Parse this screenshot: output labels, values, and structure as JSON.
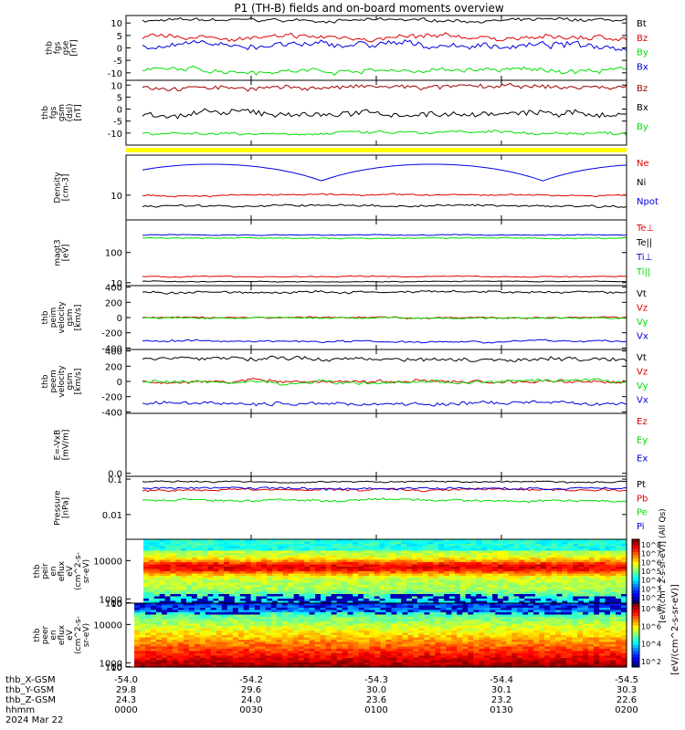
{
  "title": "P1 (TH-B) fields and on-board moments overview",
  "colors": {
    "black": "#000000",
    "red": "#e00000",
    "green": "#00e000",
    "blue": "#0000e0",
    "yellow": "#ffff00",
    "darkred": "#a00000"
  },
  "chart_data": [
    {
      "type": "line",
      "id": "p1",
      "ylabel_lines": [
        "thb",
        "fgs",
        "gse",
        "[nT]"
      ],
      "ylim": [
        -13,
        13
      ],
      "yticks": [
        -10,
        -5,
        0,
        5,
        10
      ],
      "series": [
        {
          "name": "Bt",
          "color": "black",
          "level": 11,
          "noise": 1
        },
        {
          "name": "Bz",
          "color": "red",
          "level": 4,
          "noise": 1.5
        },
        {
          "name": "By",
          "color": "green",
          "level": -9,
          "noise": 1.5
        },
        {
          "name": "Bx",
          "color": "blue",
          "level": 1,
          "noise": 2
        }
      ],
      "legend": [
        "Bt",
        "Bz",
        "By",
        "Bx"
      ]
    },
    {
      "type": "line",
      "id": "p2",
      "ylabel_lines": [
        "thb",
        "fgs",
        "gsm",
        "(dsl)",
        "[nT]"
      ],
      "ylim": [
        -15,
        12
      ],
      "yticks": [
        -10,
        -5,
        0,
        5,
        10
      ],
      "series": [
        {
          "name": "Bz",
          "color": "darkred",
          "level": 9,
          "noise": 1.5
        },
        {
          "name": "Bx",
          "color": "black",
          "level": -2,
          "noise": 2
        },
        {
          "name": "By",
          "color": "green",
          "level": -10,
          "noise": 1
        }
      ],
      "legend": [
        "Bz",
        "Bx",
        "By"
      ]
    },
    {
      "type": "line",
      "id": "p3",
      "ylabel_lines": [
        "Density",
        "[cm-3]"
      ],
      "ylim": [
        3,
        70
      ],
      "yticks": [
        10
      ],
      "log": true,
      "series": [
        {
          "name": "Ne",
          "color": "red",
          "level": 10,
          "noise": 0.6
        },
        {
          "name": "Ni",
          "color": "black",
          "level": 6,
          "noise": 0.5
        },
        {
          "name": "Npot",
          "color": "blue",
          "level": 40,
          "noise": 0
        }
      ],
      "legend": [
        "Ne",
        "Ni",
        "Npot"
      ]
    },
    {
      "type": "line",
      "id": "p4",
      "ylabel_lines": [
        "magt3",
        "[eV]"
      ],
      "ylim": [
        8,
        1200
      ],
      "yticks": [
        10,
        100
      ],
      "log": true,
      "series": [
        {
          "name": "Te⊥",
          "color": "red",
          "level": 16,
          "noise": 1
        },
        {
          "name": "Te||",
          "color": "black",
          "level": 11,
          "noise": 0.5
        },
        {
          "name": "Ti⊥",
          "color": "blue",
          "level": 380,
          "noise": 20
        },
        {
          "name": "Ti||",
          "color": "green",
          "level": 300,
          "noise": 20
        }
      ],
      "legend": [
        "Te⊥",
        "Te||",
        "Ti⊥",
        "Ti||"
      ]
    },
    {
      "type": "line",
      "id": "p5",
      "ylabel_lines": [
        "thb",
        "peim",
        "velocity",
        "gsm",
        "[km/s]"
      ],
      "ylim": [
        -420,
        420
      ],
      "yticks": [
        -400,
        -200,
        0,
        200,
        400
      ],
      "series": [
        {
          "name": "Vt",
          "color": "black",
          "level": 330,
          "noise": 25
        },
        {
          "name": "Vz",
          "color": "red",
          "level": 0,
          "noise": 15
        },
        {
          "name": "Vy",
          "color": "green",
          "level": -5,
          "noise": 15
        },
        {
          "name": "Vx",
          "color": "blue",
          "level": -310,
          "noise": 20
        }
      ],
      "legend": [
        "Vt",
        "Vz",
        "Vy",
        "Vx"
      ]
    },
    {
      "type": "line",
      "id": "p6",
      "ylabel_lines": [
        "thb",
        "peem",
        "velocity",
        "gsm",
        "[km/s]"
      ],
      "ylim": [
        -420,
        420
      ],
      "yticks": [
        -400,
        -200,
        0,
        200,
        400
      ],
      "series": [
        {
          "name": "Vt",
          "color": "black",
          "level": 300,
          "noise": 40
        },
        {
          "name": "Vz",
          "color": "red",
          "level": 0,
          "noise": 35
        },
        {
          "name": "Vy",
          "color": "green",
          "level": -10,
          "noise": 35
        },
        {
          "name": "Vx",
          "color": "blue",
          "level": -290,
          "noise": 35
        }
      ],
      "legend": [
        "Vt",
        "Vz",
        "Vy",
        "Vx"
      ]
    },
    {
      "type": "line",
      "id": "p7",
      "ylabel_lines": [
        "E=-VxB",
        "[mV/m]"
      ],
      "ylim": [
        -0.05,
        1
      ],
      "yticks": [
        0.0
      ],
      "series": [],
      "legend": [
        "Ez",
        "Ey",
        "Ex"
      ],
      "legend_colors": [
        "red",
        "green",
        "blue"
      ]
    },
    {
      "type": "line",
      "id": "p8",
      "ylabel_lines": [
        "Pressure",
        "[nPa]"
      ],
      "ylim": [
        0.002,
        0.12
      ],
      "yticks": [
        0.01,
        0.1
      ],
      "log": true,
      "series": [
        {
          "name": "Pt",
          "color": "black",
          "level": 0.085,
          "noise": 0.006
        },
        {
          "name": "Pb",
          "color": "red",
          "level": 0.05,
          "noise": 0.006
        },
        {
          "name": "Pe",
          "color": "green",
          "level": 0.025,
          "noise": 0.003
        },
        {
          "name": "Pi",
          "color": "blue",
          "level": 0.055,
          "noise": 0.006
        }
      ],
      "legend": [
        "Pt",
        "Pb",
        "Pe",
        "Pi"
      ]
    },
    {
      "type": "heatmap",
      "id": "p9",
      "ylabel_lines": [
        "thb",
        "peir",
        "en",
        "eflux",
        "eV",
        "(cm^2-s-",
        "sr-eV)"
      ],
      "ylim": [
        6,
        15000
      ],
      "yticks": [
        10,
        100,
        1000,
        10000
      ],
      "colorbar_ticks": [
        "10^8",
        "10^7",
        "10^6",
        "10^5",
        "10^4",
        "10^3",
        "10^2"
      ],
      "colorbar_label": "[eV/(cm^2-s-sr-eV)] (All Qs)"
    },
    {
      "type": "heatmap",
      "id": "p10",
      "ylabel_lines": [
        "thb",
        "peer",
        "en",
        "eflux",
        "eV",
        "(cm^2-s-",
        "sr-eV)"
      ],
      "ylim": [
        6,
        15000
      ],
      "yticks": [
        10,
        100,
        1000,
        10000
      ],
      "colorbar_ticks": [
        "10^8",
        "10^6",
        "10^4",
        "10^2"
      ]
    }
  ],
  "xaxis": {
    "rows": [
      {
        "label": "thb_X-GSM",
        "values": [
          "-54.0",
          "-54.2",
          "-54.3",
          "-54.4",
          "-54.5"
        ]
      },
      {
        "label": "thb_Y-GSM",
        "values": [
          "29.8",
          "29.6",
          "30.0",
          "30.1",
          "30.3"
        ]
      },
      {
        "label": "thb_Z-GSM",
        "values": [
          "24.3",
          "24.0",
          "23.6",
          "23.2",
          "22.6"
        ]
      },
      {
        "label": "hhmm",
        "values": [
          "0000",
          "0030",
          "0100",
          "0130",
          "0200"
        ]
      }
    ],
    "date": "2024 Mar 22"
  },
  "right_colorbar_label": "[eV/(cm^2-s-sr-eV)]"
}
